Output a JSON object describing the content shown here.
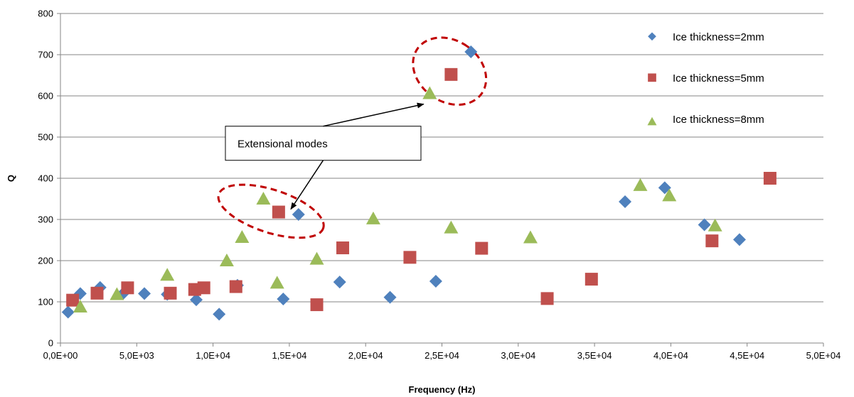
{
  "chart_data": {
    "type": "scatter",
    "title": "",
    "xlabel": "Frequency (Hz)",
    "ylabel": "Q",
    "xlim": [
      0,
      50000
    ],
    "ylim": [
      0,
      800
    ],
    "x_ticks": [
      0,
      5000,
      10000,
      15000,
      20000,
      25000,
      30000,
      35000,
      40000,
      45000,
      50000
    ],
    "x_tick_labels": [
      "0,0E+00",
      "5,0E+03",
      "1,0E+04",
      "1,5E+04",
      "2,0E+04",
      "2,5E+04",
      "3,0E+04",
      "3,5E+04",
      "4,0E+04",
      "4,5E+04",
      "5,0E+04"
    ],
    "y_ticks": [
      0,
      100,
      200,
      300,
      400,
      500,
      600,
      700,
      800
    ],
    "y_tick_labels": [
      "0",
      "100",
      "200",
      "300",
      "400",
      "500",
      "600",
      "700",
      "800"
    ],
    "grid": "horizontal",
    "legend_position": "top-right",
    "series": [
      {
        "name": "Ice thickness=2mm",
        "marker": "diamond",
        "color": "#4f81bd",
        "points": [
          [
            500,
            75
          ],
          [
            1300,
            120
          ],
          [
            2600,
            135
          ],
          [
            4100,
            120
          ],
          [
            5500,
            120
          ],
          [
            7000,
            118
          ],
          [
            8900,
            105
          ],
          [
            10400,
            70
          ],
          [
            11600,
            140
          ],
          [
            14600,
            107
          ],
          [
            15600,
            312
          ],
          [
            18300,
            148
          ],
          [
            21600,
            111
          ],
          [
            24600,
            150
          ],
          [
            26900,
            707
          ],
          [
            37000,
            343
          ],
          [
            39600,
            377
          ],
          [
            42200,
            287
          ],
          [
            44500,
            251
          ]
        ]
      },
      {
        "name": "Ice thickness=5mm",
        "marker": "square",
        "color": "#c0504d",
        "points": [
          [
            800,
            104
          ],
          [
            2400,
            121
          ],
          [
            4400,
            134
          ],
          [
            7200,
            121
          ],
          [
            8800,
            130
          ],
          [
            9400,
            134
          ],
          [
            11500,
            137
          ],
          [
            14300,
            318
          ],
          [
            16800,
            93
          ],
          [
            18500,
            231
          ],
          [
            22900,
            208
          ],
          [
            25600,
            652
          ],
          [
            27600,
            230
          ],
          [
            31900,
            108
          ],
          [
            34800,
            155
          ],
          [
            42700,
            248
          ],
          [
            46500,
            400
          ]
        ]
      },
      {
        "name": "Ice thickness=8mm",
        "marker": "triangle",
        "color": "#9bbb59",
        "points": [
          [
            1300,
            88
          ],
          [
            3700,
            118
          ],
          [
            7000,
            165
          ],
          [
            10900,
            200
          ],
          [
            11900,
            257
          ],
          [
            13300,
            350
          ],
          [
            14200,
            146
          ],
          [
            16800,
            204
          ],
          [
            20500,
            302
          ],
          [
            24200,
            606
          ],
          [
            25600,
            280
          ],
          [
            30800,
            256
          ],
          [
            38000,
            383
          ],
          [
            39900,
            358
          ],
          [
            42900,
            285
          ]
        ]
      }
    ],
    "annotations": [
      {
        "text": "Extensional modes",
        "box_color": "#ffffff",
        "arrow_color": "#000000",
        "ellipse_color": "#c00000",
        "highlighted_regions": [
          {
            "x_center": 13800,
            "y_center": 320,
            "x_radius": 3600,
            "y_radius": 52
          },
          {
            "x_center": 25500,
            "y_center": 660,
            "x_radius": 2000,
            "y_radius": 95
          }
        ],
        "anchor": {
          "x": 17800,
          "y": 485
        },
        "arrows_to": [
          {
            "x": 23800,
            "y": 580
          },
          {
            "x": 15100,
            "y": 325
          }
        ]
      }
    ]
  }
}
